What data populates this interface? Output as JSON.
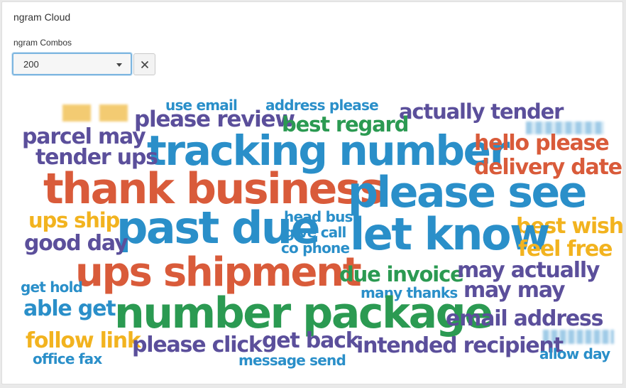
{
  "panel": {
    "title": "ngram Cloud",
    "field_label": "ngram Combos",
    "select_value": "200",
    "clear_icon": "close-icon"
  },
  "colors": {
    "blue": "#2a8fc9",
    "red": "#d95b3a",
    "purple": "#5b4f9b",
    "green": "#2b9a52",
    "yellow": "#f2b31f",
    "panel_bg": "#ffffff",
    "page_bg": "#e9e9e9",
    "focus_border": "#7db6e0"
  },
  "words": {
    "use_email": "use email",
    "address_please": "address please",
    "actually_tender": "actually tender",
    "please_review": "please review",
    "best_regard": "best regard",
    "parcel_may": "parcel may",
    "tracking_number": "tracking number",
    "hello_please": "hello please",
    "tender_ups": "tender ups",
    "delivery_date": "delivery date",
    "thank_business": "thank business",
    "please_see": "please see",
    "ups_ship": "ups ship",
    "head_bus": "head bus",
    "best_wish": "best wish",
    "past_due": "past due",
    "give_call": "give call",
    "let_know": "let know",
    "good_day": "good day",
    "co_phone": "co phone",
    "feel_free": "feel free",
    "ups_shipment": "ups shipment",
    "due_invoice": "due invoice",
    "may_actually": "may actually",
    "get_hold": "get hold",
    "many_thanks": "many thanks",
    "may_may": "may may",
    "able_get": "able get",
    "number_package": "number package",
    "email_address": "email address",
    "follow_link": "follow link",
    "please_click": "please click",
    "get_back": "get back",
    "intended_recipient": "intended recipient",
    "allow_day": "allow day",
    "office_fax": "office fax",
    "message_send": "message send"
  }
}
